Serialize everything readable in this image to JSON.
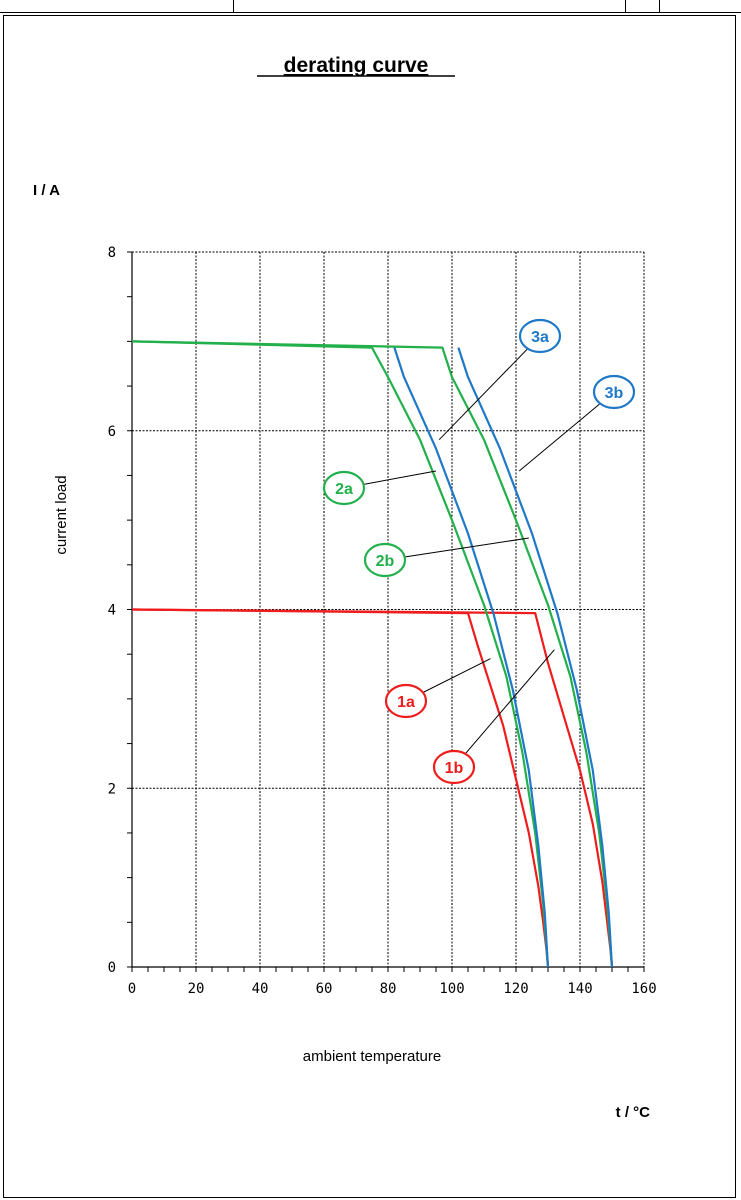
{
  "chart_data": {
    "type": "line",
    "title": "derating curve",
    "ylabel_unit": "I / A",
    "ylabel": "current load",
    "xlabel": "ambient temperature",
    "xlabel_unit": "t / °C",
    "xlim": [
      0,
      160
    ],
    "ylim": [
      0,
      8
    ],
    "x_ticks": [
      0,
      20,
      40,
      60,
      80,
      100,
      120,
      140,
      160
    ],
    "y_ticks": [
      0,
      2,
      4,
      6,
      8
    ],
    "grid": true,
    "series": [
      {
        "name": "1a",
        "color": "#ee1c1c",
        "x": [
          0,
          105,
          108,
          112,
          116,
          120,
          124,
          127,
          128.5,
          129.5,
          130
        ],
        "y": [
          4.0,
          3.96,
          3.6,
          3.15,
          2.7,
          2.1,
          1.5,
          0.9,
          0.5,
          0.2,
          0.0
        ]
      },
      {
        "name": "1b",
        "color": "#ee1c1c",
        "x": [
          0,
          126,
          130,
          135,
          140,
          144,
          147,
          148.5,
          149.5,
          150
        ],
        "y": [
          4.0,
          3.96,
          3.4,
          2.8,
          2.2,
          1.6,
          0.95,
          0.5,
          0.2,
          0.0
        ]
      },
      {
        "name": "2a",
        "color": "#22b04b",
        "x": [
          0,
          75,
          80,
          90,
          100,
          110,
          117,
          122,
          126,
          128.5,
          130
        ],
        "y": [
          7.0,
          6.93,
          6.6,
          5.9,
          5.0,
          4.05,
          3.25,
          2.4,
          1.5,
          0.7,
          0.0
        ]
      },
      {
        "name": "2b",
        "color": "#22b04b",
        "x": [
          0,
          97,
          100,
          110,
          120,
          130,
          137,
          142,
          146,
          148.5,
          150
        ],
        "y": [
          7.0,
          6.93,
          6.6,
          5.9,
          5.0,
          4.05,
          3.25,
          2.4,
          1.5,
          0.7,
          0.0
        ]
      },
      {
        "name": "3a",
        "color": "#1f78c8",
        "x": [
          82,
          85,
          95,
          105,
          113,
          119,
          124,
          127,
          129,
          130
        ],
        "y": [
          6.93,
          6.6,
          5.8,
          4.85,
          3.95,
          3.1,
          2.2,
          1.35,
          0.6,
          0.0
        ]
      },
      {
        "name": "3b",
        "color": "#1f78c8",
        "x": [
          102,
          105,
          115,
          125,
          133,
          139,
          144,
          147,
          149,
          150
        ],
        "y": [
          6.93,
          6.6,
          5.8,
          4.85,
          3.95,
          3.1,
          2.2,
          1.35,
          0.6,
          0.0
        ]
      }
    ],
    "annotations": [
      {
        "label": "3a",
        "color": "#1f78c8",
        "point": [
          96,
          5.9
        ]
      },
      {
        "label": "3b",
        "color": "#1f78c8",
        "point": [
          121,
          5.55
        ]
      },
      {
        "label": "2a",
        "color": "#22b04b",
        "point": [
          95,
          5.55
        ]
      },
      {
        "label": "2b",
        "color": "#22b04b",
        "point": [
          124,
          4.8
        ]
      },
      {
        "label": "1a",
        "color": "#ee1c1c",
        "point": [
          112,
          3.45
        ]
      },
      {
        "label": "1b",
        "color": "#ee1c1c",
        "point": [
          132,
          3.55
        ]
      }
    ]
  }
}
